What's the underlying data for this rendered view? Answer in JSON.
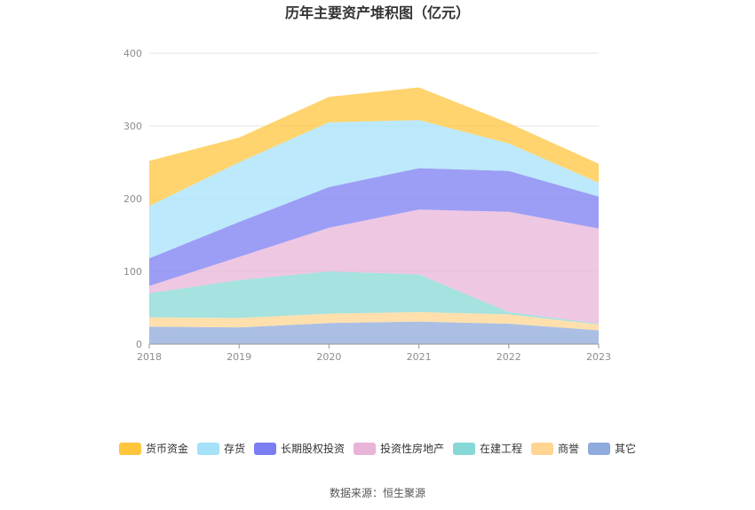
{
  "source_label": "数据来源：恒生聚源",
  "chart_data": {
    "type": "area",
    "stacked": true,
    "title": "历年主要资产堆积图（亿元）",
    "xlabel": "",
    "ylabel": "",
    "categories": [
      "2018",
      "2019",
      "2020",
      "2021",
      "2022",
      "2023"
    ],
    "ylim": [
      0,
      400
    ],
    "yticks": [
      0,
      100,
      200,
      300,
      400
    ],
    "grid": true,
    "legend_position": "bottom",
    "series": [
      {
        "name": "其它",
        "color": "#8faadc",
        "values": [
          24,
          23,
          29,
          31,
          28,
          19
        ]
      },
      {
        "name": "商誉",
        "color": "#ffd591",
        "values": [
          13,
          13,
          13,
          13,
          13,
          8
        ]
      },
      {
        "name": "在建工程",
        "color": "#87d8d6",
        "values": [
          33,
          52,
          58,
          52,
          3,
          1
        ]
      },
      {
        "name": "投资性房地产",
        "color": "#e8b4d8",
        "values": [
          10,
          32,
          60,
          89,
          138,
          131
        ]
      },
      {
        "name": "长期股权投资",
        "color": "#7b7ef2",
        "values": [
          38,
          48,
          56,
          57,
          56,
          44
        ]
      },
      {
        "name": "存货",
        "color": "#a6e1fa",
        "values": [
          72,
          82,
          89,
          66,
          38,
          19
        ]
      },
      {
        "name": "货币资金",
        "color": "#ffc53d",
        "values": [
          62,
          34,
          35,
          45,
          28,
          26
        ]
      }
    ],
    "legend_order": [
      "货币资金",
      "存货",
      "长期股权投资",
      "投资性房地产",
      "在建工程",
      "商誉",
      "其它"
    ]
  }
}
